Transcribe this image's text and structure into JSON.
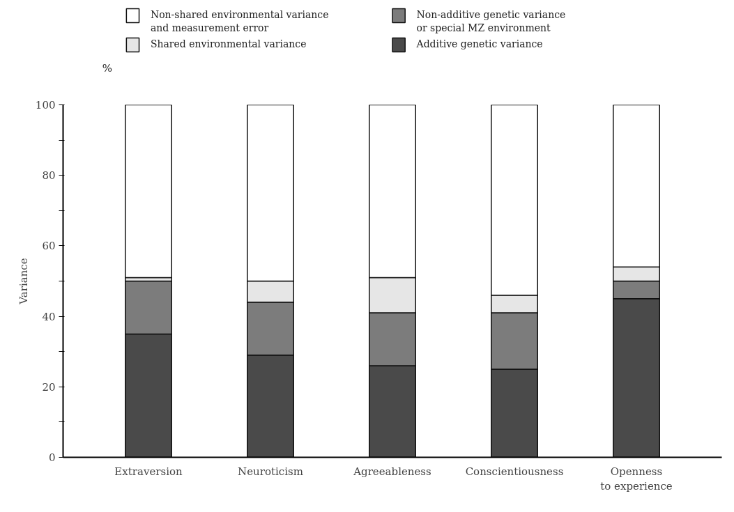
{
  "chart_data": {
    "type": "bar",
    "stacked": true,
    "ylabel": "Variance",
    "annotations": [
      "%"
    ],
    "categories": [
      "Extraversion",
      "Neuroticism",
      "Agreeableness",
      "Conscientiousness",
      "Openness\nto experience"
    ],
    "series": [
      {
        "name": "Additive genetic variance",
        "color": "#4a4a4a",
        "values": [
          35,
          29,
          26,
          25,
          45
        ]
      },
      {
        "name": "Non-additive genetic variance\nor special MZ environment",
        "color": "#7c7c7c",
        "values": [
          15,
          15,
          15,
          16,
          5
        ]
      },
      {
        "name": "Shared environmental variance",
        "color": "#e6e6e6",
        "values": [
          1,
          6,
          10,
          5,
          4
        ]
      },
      {
        "name": "Non-shared environmental variance\nand measurement error",
        "color": "#ffffff",
        "values": [
          49,
          50,
          49,
          54,
          46
        ]
      }
    ],
    "ylim": [
      0,
      100
    ],
    "yticks": [
      0,
      {
        "value": 10,
        "label": null
      },
      20,
      {
        "value": 30,
        "label": null
      },
      40,
      {
        "value": 50,
        "label": null
      },
      60,
      {
        "value": 70,
        "label": null
      },
      80,
      {
        "value": 90,
        "label": null
      },
      100
    ],
    "grid": false,
    "legend": "top"
  }
}
